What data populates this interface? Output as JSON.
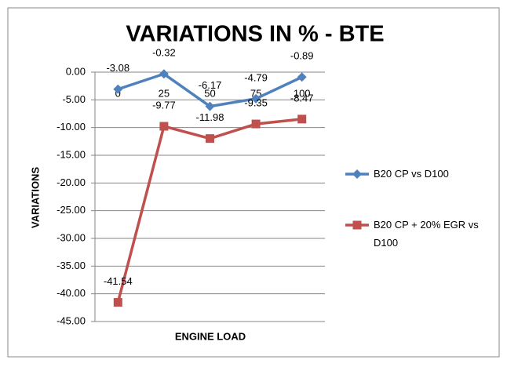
{
  "chart_data": {
    "type": "line",
    "title": "VARIATIONS IN % -   BTE",
    "x_label": "ENGINE LOAD",
    "y_label": "VARIATIONS",
    "categories": [
      "0",
      "25",
      "50",
      "75",
      "100"
    ],
    "series": [
      {
        "name": "B20 CP vs D100",
        "color": "#4f81bd",
        "marker": "diamond",
        "values": [
          -3.08,
          -0.32,
          -6.17,
          -4.79,
          -0.89
        ]
      },
      {
        "name": "B20 CP + 20% EGR vs D100",
        "color": "#c0504d",
        "marker": "square",
        "values": [
          -41.54,
          -9.77,
          -11.98,
          -9.35,
          -8.47
        ]
      }
    ],
    "ylim": [
      -45,
      0
    ],
    "yticks": [
      {
        "value": 0,
        "label": "0.00"
      },
      {
        "value": -5,
        "label": "-5.00"
      },
      {
        "value": -10,
        "label": "-10.00"
      },
      {
        "value": -15,
        "label": "-15.00"
      },
      {
        "value": -20,
        "label": "-20.00"
      },
      {
        "value": -25,
        "label": "-25.00"
      },
      {
        "value": -30,
        "label": "-30.00"
      },
      {
        "value": -35,
        "label": "-35.00"
      },
      {
        "value": -40,
        "label": "-40.00"
      },
      {
        "value": -45,
        "label": "-45.00"
      }
    ],
    "grid": true,
    "legend": "right"
  }
}
